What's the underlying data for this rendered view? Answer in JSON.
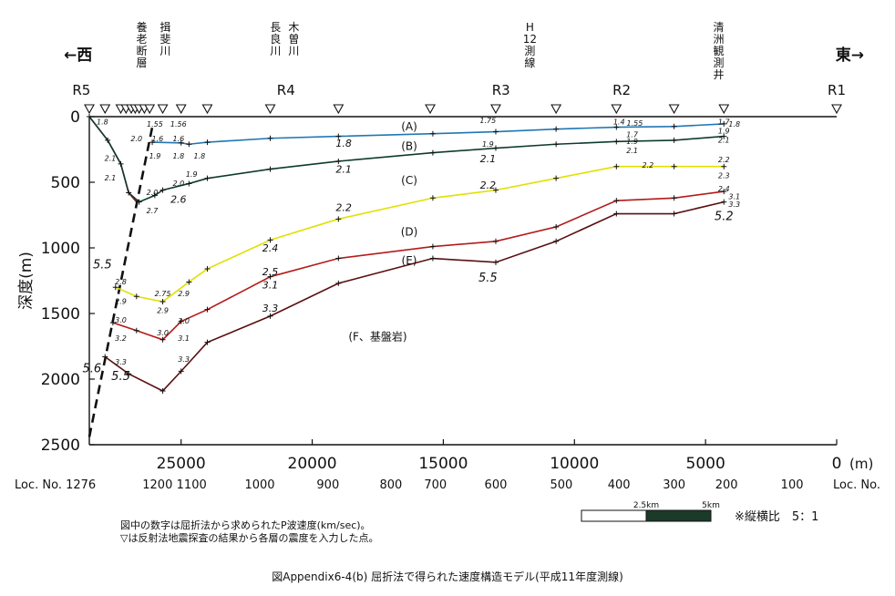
{
  "chart_data": {
    "type": "line",
    "ylabel": "深度(m)",
    "xlabel": "",
    "units_x": "(m)",
    "x_direction": "reversed",
    "xlim": [
      0,
      28500
    ],
    "ylim": [
      0,
      2500
    ],
    "y_direction": "depth-down",
    "x_ticks": [
      25000,
      20000,
      15000,
      10000,
      5000,
      0
    ],
    "x_tick_labels": [
      "25000",
      "20000",
      "15000",
      "10000",
      "5000",
      "0"
    ],
    "y_ticks": [
      0,
      500,
      1000,
      1500,
      2000,
      2500
    ],
    "loc": {
      "label_left": "Loc. No. 1276",
      "label_right": "Loc. No.",
      "ticks": [
        {
          "x": 25900,
          "label": "1200"
        },
        {
          "x": 24600,
          "label": "1100"
        },
        {
          "x": 22000,
          "label": "1000"
        },
        {
          "x": 19400,
          "label": "900"
        },
        {
          "x": 17000,
          "label": "800"
        },
        {
          "x": 15300,
          "label": "700"
        },
        {
          "x": 13000,
          "label": "600"
        },
        {
          "x": 10500,
          "label": "500"
        },
        {
          "x": 8300,
          "label": "400"
        },
        {
          "x": 6200,
          "label": "300"
        },
        {
          "x": 4200,
          "label": "200"
        },
        {
          "x": 1700,
          "label": "100"
        }
      ]
    },
    "direction_labels": {
      "west": "←西",
      "east": "東→"
    },
    "station_labels": [
      {
        "x": 28800,
        "label": "R5"
      },
      {
        "x": 21000,
        "label": "R4"
      },
      {
        "x": 12800,
        "label": "R3"
      },
      {
        "x": 8200,
        "label": "R2"
      },
      {
        "x": 0,
        "label": "R1"
      }
    ],
    "feature_labels": [
      {
        "x": 26500,
        "lines": [
          "養",
          "老",
          "断",
          "層"
        ]
      },
      {
        "x": 25600,
        "lines": [
          "揖",
          "斐",
          "川"
        ]
      },
      {
        "x": 21400,
        "lines": [
          "長",
          "良",
          "川"
        ]
      },
      {
        "x": 20700,
        "lines": [
          "木",
          "曽",
          "川"
        ]
      },
      {
        "x": 11700,
        "lines": [
          "H",
          "12",
          "測",
          "線"
        ]
      },
      {
        "x": 4500,
        "lines": [
          "清",
          "洲",
          "観",
          "測",
          "井"
        ]
      }
    ],
    "reflection_points_x": [
      28500,
      27900,
      27300,
      27100,
      26900,
      26750,
      26600,
      26400,
      26200,
      25700,
      25000,
      24000,
      21600,
      19000,
      15500,
      13000,
      10700,
      8400,
      6200,
      4300,
      0
    ],
    "series": [
      {
        "name": "(A)",
        "color": "#1f77b4",
        "x": [
          26100,
          25000,
          24700,
          24000,
          21600,
          19000,
          15400,
          13000,
          10700,
          8400,
          6200,
          4300
        ],
        "y": [
          195,
          200,
          210,
          195,
          165,
          150,
          130,
          115,
          95,
          80,
          75,
          55
        ]
      },
      {
        "name": "(B)",
        "color": "#0e3b2e",
        "x": [
          28500,
          27800,
          27300,
          27000,
          26600,
          26000,
          25700,
          24700,
          24000,
          21600,
          19000,
          15400,
          13000,
          10700,
          8400,
          6200,
          4300
        ],
        "y": [
          0,
          180,
          360,
          580,
          650,
          600,
          560,
          510,
          470,
          400,
          340,
          275,
          240,
          210,
          190,
          180,
          150
        ]
      },
      {
        "name": "(C)",
        "color": "#e0e000",
        "x": [
          27500,
          26700,
          25700,
          24700,
          24000,
          21600,
          19000,
          15400,
          13000,
          10700,
          8400,
          6200,
          4300
        ],
        "y": [
          1300,
          1370,
          1410,
          1260,
          1160,
          940,
          780,
          620,
          560,
          470,
          380,
          380,
          380
        ]
      },
      {
        "name": "(D)",
        "color": "#b31b1b",
        "x": [
          27600,
          26700,
          25700,
          25000,
          24000,
          21600,
          19000,
          15400,
          13000,
          10700,
          8400,
          6200,
          4300
        ],
        "y": [
          1570,
          1630,
          1700,
          1560,
          1470,
          1220,
          1080,
          990,
          950,
          840,
          640,
          620,
          570
        ]
      },
      {
        "name": "(E)",
        "color": "#5a0f12",
        "x": [
          27900,
          27000,
          25700,
          25000,
          24000,
          21600,
          19000,
          15400,
          13000,
          10700,
          8400,
          6200,
          4300
        ],
        "y": [
          1830,
          1960,
          2090,
          1940,
          1720,
          1520,
          1270,
          1080,
          1110,
          950,
          740,
          740,
          650
        ]
      }
    ],
    "fault_line": {
      "x": [
        28500,
        26100
      ],
      "y": [
        2440,
        80
      ],
      "style": "dashed"
    },
    "fault_surface": {
      "x": [
        28500,
        27800,
        27300,
        27000,
        26700
      ],
      "y": [
        0,
        180,
        360,
        580,
        650
      ]
    },
    "layer_labels": [
      {
        "x": 16300,
        "y": 70,
        "label": "(A)"
      },
      {
        "x": 16300,
        "y": 220,
        "label": "(B)"
      },
      {
        "x": 16300,
        "y": 480,
        "label": "(C)"
      },
      {
        "x": 16300,
        "y": 870,
        "label": "(D)"
      },
      {
        "x": 16300,
        "y": 1090,
        "label": "(E)"
      },
      {
        "x": 17500,
        "y": 1670,
        "label": "(F、基盤岩)"
      }
    ],
    "velocity_labels": [
      {
        "x": 28000,
        "y": 30,
        "label": "1.8",
        "size": "s"
      },
      {
        "x": 26000,
        "y": 50,
        "label": "1.55",
        "size": "s"
      },
      {
        "x": 25100,
        "y": 50,
        "label": "1.56",
        "size": "s"
      },
      {
        "x": 26700,
        "y": 160,
        "label": "2.0",
        "size": "s"
      },
      {
        "x": 25900,
        "y": 160,
        "label": "1.6",
        "size": "s"
      },
      {
        "x": 25100,
        "y": 160,
        "label": "1.6",
        "size": "s"
      },
      {
        "x": 26000,
        "y": 290,
        "label": "1.9",
        "size": "s"
      },
      {
        "x": 25100,
        "y": 290,
        "label": "1.8",
        "size": "s"
      },
      {
        "x": 24300,
        "y": 290,
        "label": "1.8",
        "size": "s"
      },
      {
        "x": 27700,
        "y": 310,
        "label": "2.1",
        "size": "s"
      },
      {
        "x": 27700,
        "y": 460,
        "label": "2.1",
        "size": "s"
      },
      {
        "x": 24600,
        "y": 430,
        "label": "1.9",
        "size": "s"
      },
      {
        "x": 25100,
        "y": 500,
        "label": "2.0",
        "size": "s"
      },
      {
        "x": 26100,
        "y": 570,
        "label": "2.0",
        "size": "s"
      },
      {
        "x": 25100,
        "y": 630,
        "label": "2.6",
        "size": "m"
      },
      {
        "x": 26100,
        "y": 710,
        "label": "2.7",
        "size": "s"
      },
      {
        "x": 18800,
        "y": 200,
        "label": "1.8",
        "size": "m"
      },
      {
        "x": 18800,
        "y": 400,
        "label": "2.1",
        "size": "m"
      },
      {
        "x": 18800,
        "y": 690,
        "label": "2.2",
        "size": "m"
      },
      {
        "x": 21600,
        "y": 1000,
        "label": "2.4",
        "size": "m"
      },
      {
        "x": 21600,
        "y": 1180,
        "label": "2.5",
        "size": "m"
      },
      {
        "x": 21600,
        "y": 1280,
        "label": "3.1",
        "size": "m"
      },
      {
        "x": 21600,
        "y": 1460,
        "label": "3.3",
        "size": "m"
      },
      {
        "x": 27300,
        "y": 1250,
        "label": "2.8",
        "size": "s"
      },
      {
        "x": 27300,
        "y": 1400,
        "label": "2.9",
        "size": "s"
      },
      {
        "x": 25700,
        "y": 1340,
        "label": "2.75",
        "size": "s"
      },
      {
        "x": 24900,
        "y": 1340,
        "label": "2.9",
        "size": "s"
      },
      {
        "x": 25700,
        "y": 1470,
        "label": "2.9",
        "size": "s"
      },
      {
        "x": 24900,
        "y": 1550,
        "label": "3.0",
        "size": "s"
      },
      {
        "x": 27300,
        "y": 1540,
        "label": "3.0",
        "size": "s"
      },
      {
        "x": 27300,
        "y": 1680,
        "label": "3.2",
        "size": "s"
      },
      {
        "x": 25700,
        "y": 1640,
        "label": "3.0",
        "size": "s"
      },
      {
        "x": 24900,
        "y": 1680,
        "label": "3.1",
        "size": "s"
      },
      {
        "x": 27300,
        "y": 1860,
        "label": "3.3",
        "size": "s"
      },
      {
        "x": 24900,
        "y": 1840,
        "label": "3.3",
        "size": "s"
      },
      {
        "x": 28000,
        "y": 1130,
        "label": "5.5",
        "size": "l"
      },
      {
        "x": 28400,
        "y": 1920,
        "label": "5.6",
        "size": "l"
      },
      {
        "x": 27300,
        "y": 1980,
        "label": "5.5",
        "size": "l"
      },
      {
        "x": 13300,
        "y": 1230,
        "label": "5.5",
        "size": "l"
      },
      {
        "x": 13300,
        "y": 20,
        "label": "1.75",
        "size": "s"
      },
      {
        "x": 13300,
        "y": 200,
        "label": "1.9",
        "size": "s"
      },
      {
        "x": 13300,
        "y": 320,
        "label": "2.1",
        "size": "m"
      },
      {
        "x": 13300,
        "y": 520,
        "label": "2.2",
        "size": "m"
      },
      {
        "x": 8300,
        "y": 30,
        "label": "1.4",
        "size": "s"
      },
      {
        "x": 7700,
        "y": 40,
        "label": "1.55",
        "size": "s"
      },
      {
        "x": 7800,
        "y": 130,
        "label": "1.7",
        "size": "s"
      },
      {
        "x": 7800,
        "y": 180,
        "label": "1.9",
        "size": "s"
      },
      {
        "x": 7800,
        "y": 250,
        "label": "2.1",
        "size": "s"
      },
      {
        "x": 7200,
        "y": 360,
        "label": "2.2",
        "size": "s"
      },
      {
        "x": 4300,
        "y": 30,
        "label": "1.7",
        "size": "s"
      },
      {
        "x": 3900,
        "y": 50,
        "label": "1.8",
        "size": "s"
      },
      {
        "x": 4300,
        "y": 100,
        "label": "1.9",
        "size": "s"
      },
      {
        "x": 4300,
        "y": 170,
        "label": "2.1",
        "size": "s"
      },
      {
        "x": 4300,
        "y": 320,
        "label": "2.2",
        "size": "s"
      },
      {
        "x": 4300,
        "y": 440,
        "label": "2.3",
        "size": "s"
      },
      {
        "x": 4300,
        "y": 540,
        "label": "2.4",
        "size": "s"
      },
      {
        "x": 3900,
        "y": 600,
        "label": "3.1",
        "size": "s"
      },
      {
        "x": 3900,
        "y": 660,
        "label": "3.3",
        "size": "s"
      },
      {
        "x": 4300,
        "y": 760,
        "label": "5.2",
        "size": "l"
      }
    ],
    "scale_bar": {
      "label_mid": "2.5km",
      "label_end": "5km"
    }
  },
  "notes": {
    "line1": "図中の数字は屈折法から求められたP波速度(km/sec)。",
    "line2": "▽は反射法地震探査の結果から各層の震度を入力した点。"
  },
  "ratio": "※縦横比　5：1",
  "caption": "図Appendix6-4(b)  屈折法で得られた速度構造モデル(平成11年度測線)"
}
